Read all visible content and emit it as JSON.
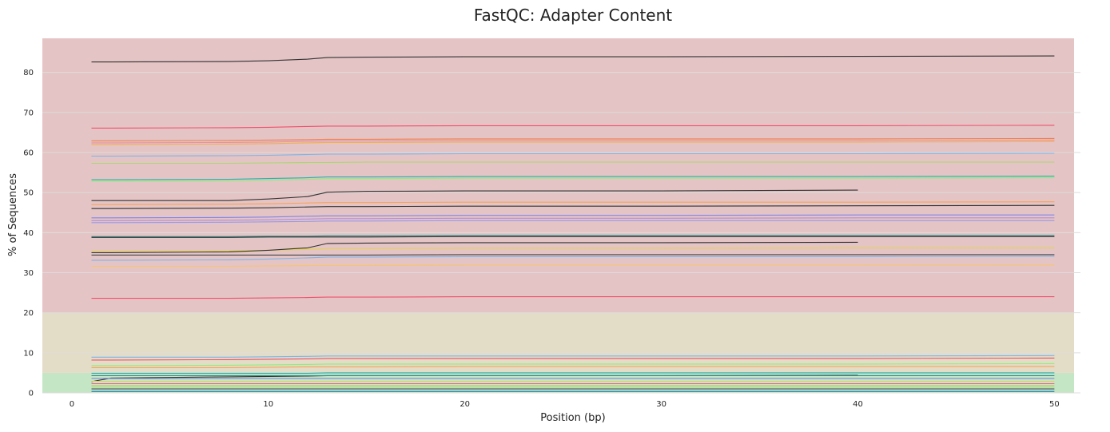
{
  "chart_data": {
    "type": "line",
    "title": "FastQC: Adapter Content",
    "xlabel": "Position (bp)",
    "ylabel": "% of Sequences",
    "xlim": [
      -1.5,
      51
    ],
    "ylim": [
      0,
      88.5
    ],
    "xticks": [
      0,
      10,
      20,
      30,
      40,
      50
    ],
    "yticks": [
      0,
      10,
      20,
      30,
      40,
      50,
      60,
      70,
      80
    ],
    "grid": true,
    "bands": [
      {
        "from": 0,
        "to": 5,
        "color": "#c5e6c5"
      },
      {
        "from": 5,
        "to": 20,
        "color": "#e3dcc6"
      },
      {
        "from": 20,
        "to": 88.5,
        "color": "#e4c4c4"
      }
    ],
    "x": [
      1,
      2,
      8,
      10,
      12,
      13,
      15,
      20,
      30,
      40,
      50
    ],
    "series": [
      {
        "color": "#333333",
        "values": [
          82.6,
          82.6,
          82.7,
          82.9,
          83.3,
          83.7,
          83.8,
          83.9,
          83.9,
          84.0,
          84.1
        ]
      },
      {
        "color": "#f0506e",
        "values": [
          66.1,
          66.1,
          66.2,
          66.3,
          66.5,
          66.6,
          66.6,
          66.7,
          66.7,
          66.7,
          66.8
        ]
      },
      {
        "color": "#f08050",
        "values": [
          62.9,
          62.9,
          63.0,
          63.1,
          63.2,
          63.3,
          63.3,
          63.4,
          63.4,
          63.4,
          63.5
        ]
      },
      {
        "color": "#e890a0",
        "values": [
          62.4,
          62.4,
          62.5,
          62.6,
          62.8,
          62.9,
          62.9,
          63.0,
          63.0,
          63.0,
          63.1
        ]
      },
      {
        "color": "#f0b050",
        "values": [
          62.0,
          62.0,
          62.1,
          62.2,
          62.4,
          62.5,
          62.5,
          62.6,
          62.6,
          62.6,
          62.7
        ]
      },
      {
        "color": "#7cb5ec",
        "values": [
          59.1,
          59.1,
          59.2,
          59.3,
          59.5,
          59.6,
          59.6,
          59.7,
          59.7,
          59.7,
          59.8
        ]
      },
      {
        "color": "#a8d870",
        "values": [
          57.3,
          57.3,
          57.3,
          57.4,
          57.5,
          57.5,
          57.6,
          57.6,
          57.6,
          57.6,
          57.6
        ]
      },
      {
        "color": "#2bb0b0",
        "values": [
          53.2,
          53.2,
          53.3,
          53.5,
          53.7,
          53.9,
          53.9,
          54.0,
          54.0,
          54.0,
          54.1
        ]
      },
      {
        "color": "#90ed7d",
        "values": [
          52.8,
          52.8,
          52.9,
          53.1,
          53.3,
          53.5,
          53.5,
          53.6,
          53.6,
          53.6,
          53.7
        ]
      },
      {
        "color": "#333333",
        "values": [
          48.0,
          48.0,
          48.0,
          48.4,
          49.0,
          50.1,
          50.3,
          50.4,
          50.4,
          50.6,
          null
        ]
      },
      {
        "color": "#f7a35c",
        "values": [
          47.0,
          47.0,
          47.1,
          47.2,
          47.4,
          47.5,
          47.5,
          47.6,
          47.6,
          47.6,
          47.7
        ]
      },
      {
        "color": "#333333",
        "values": [
          46.0,
          46.0,
          46.1,
          46.2,
          46.4,
          46.5,
          46.5,
          46.6,
          46.6,
          46.7,
          46.8
        ]
      },
      {
        "color": "#8085e9",
        "values": [
          43.7,
          43.7,
          43.8,
          43.9,
          44.1,
          44.2,
          44.2,
          44.3,
          44.3,
          44.4,
          44.4
        ]
      },
      {
        "color": "#b08de0",
        "values": [
          43.0,
          43.0,
          43.1,
          43.2,
          43.4,
          43.5,
          43.5,
          43.6,
          43.6,
          43.7,
          43.7
        ]
      },
      {
        "color": "#9a9ae6",
        "values": [
          42.5,
          42.5,
          42.6,
          42.7,
          42.8,
          42.9,
          42.9,
          43.0,
          43.0,
          43.0,
          43.0
        ]
      },
      {
        "color": "#2b908f",
        "values": [
          39.0,
          39.0,
          39.0,
          39.1,
          39.1,
          39.2,
          39.2,
          39.3,
          39.3,
          39.3,
          39.3
        ]
      },
      {
        "color": "#333333",
        "values": [
          38.8,
          38.8,
          38.8,
          38.9,
          38.9,
          38.9,
          38.9,
          39.0,
          39.0,
          39.0,
          39.0
        ]
      },
      {
        "color": "#e4d354",
        "values": [
          35.4,
          35.4,
          35.5,
          35.6,
          35.8,
          36.0,
          36.0,
          36.1,
          36.1,
          36.2,
          36.2
        ]
      },
      {
        "color": "#333333",
        "values": [
          35.0,
          35.0,
          35.2,
          35.6,
          36.2,
          37.3,
          37.4,
          37.5,
          37.5,
          37.6,
          null
        ]
      },
      {
        "color": "#434348",
        "values": [
          34.4,
          34.4,
          34.4,
          34.4,
          34.4,
          34.4,
          34.4,
          34.5,
          34.5,
          34.5,
          34.5
        ]
      },
      {
        "color": "#7cb5ec",
        "values": [
          33.1,
          33.1,
          33.2,
          33.4,
          33.7,
          33.9,
          33.9,
          34.0,
          34.0,
          34.0,
          34.1
        ]
      },
      {
        "color": "#f7c56c",
        "values": [
          31.6,
          31.6,
          31.6,
          31.7,
          31.8,
          31.8,
          31.8,
          31.9,
          31.9,
          31.9,
          31.9
        ]
      },
      {
        "color": "#f0506e",
        "values": [
          23.6,
          23.6,
          23.6,
          23.7,
          23.8,
          23.9,
          23.9,
          24.0,
          24.0,
          24.0,
          24.0
        ]
      },
      {
        "color": "#7cb5ec",
        "values": [
          8.9,
          8.9,
          8.9,
          9.0,
          9.1,
          9.2,
          9.2,
          9.2,
          9.2,
          9.2,
          9.3
        ]
      },
      {
        "color": "#f0506e",
        "values": [
          8.2,
          8.2,
          8.3,
          8.4,
          8.5,
          8.6,
          8.6,
          8.6,
          8.6,
          8.6,
          8.7
        ]
      },
      {
        "color": "#90ed7d",
        "values": [
          6.8,
          6.8,
          6.9,
          7.0,
          7.1,
          7.2,
          7.2,
          7.2,
          7.2,
          7.2,
          7.3
        ]
      },
      {
        "color": "#f7a35c",
        "values": [
          6.3,
          6.3,
          6.3,
          6.4,
          6.5,
          6.5,
          6.5,
          6.6,
          6.6,
          6.6,
          6.6
        ]
      },
      {
        "color": "#2bb0b0",
        "values": [
          4.9,
          4.9,
          4.9,
          4.9,
          4.9,
          5.0,
          5.0,
          5.0,
          5.0,
          5.0,
          5.0
        ]
      },
      {
        "color": "#333333",
        "values": [
          2.8,
          3.7,
          4.0,
          4.1,
          4.2,
          4.3,
          4.3,
          4.3,
          4.3,
          4.4,
          null
        ]
      },
      {
        "color": "#2b908f",
        "values": [
          4.3,
          4.3,
          4.3,
          4.3,
          4.3,
          4.3,
          4.3,
          4.3,
          4.3,
          4.3,
          4.3
        ]
      },
      {
        "color": "#8085e9",
        "values": [
          3.6,
          3.6,
          3.6,
          3.6,
          3.6,
          3.6,
          3.6,
          3.6,
          3.6,
          3.6,
          3.6
        ]
      },
      {
        "color": "#e4d354",
        "values": [
          2.9,
          2.9,
          2.9,
          2.9,
          2.9,
          2.9,
          2.9,
          2.9,
          2.9,
          2.9,
          2.9
        ]
      },
      {
        "color": "#f15c80",
        "values": [
          2.3,
          2.3,
          2.3,
          2.3,
          2.3,
          2.3,
          2.3,
          2.3,
          2.3,
          2.3,
          2.3
        ]
      },
      {
        "color": "#f7a35c",
        "values": [
          1.8,
          1.8,
          1.8,
          1.8,
          1.8,
          1.8,
          1.8,
          1.8,
          1.8,
          1.8,
          1.8
        ]
      },
      {
        "color": "#90ed7d",
        "values": [
          1.4,
          1.4,
          1.4,
          1.4,
          1.4,
          1.4,
          1.4,
          1.4,
          1.4,
          1.4,
          1.4
        ]
      },
      {
        "color": "#434348",
        "values": [
          1.0,
          1.0,
          1.0,
          1.0,
          1.0,
          1.0,
          1.0,
          1.0,
          1.0,
          1.0,
          1.0
        ]
      },
      {
        "color": "#7cb5ec",
        "values": [
          0.6,
          0.6,
          0.6,
          0.6,
          0.6,
          0.6,
          0.6,
          0.6,
          0.6,
          0.6,
          0.6
        ]
      },
      {
        "color": "#2b908f",
        "values": [
          0.3,
          0.3,
          0.3,
          0.3,
          0.3,
          0.3,
          0.3,
          0.3,
          0.3,
          0.3,
          0.3
        ]
      }
    ]
  }
}
